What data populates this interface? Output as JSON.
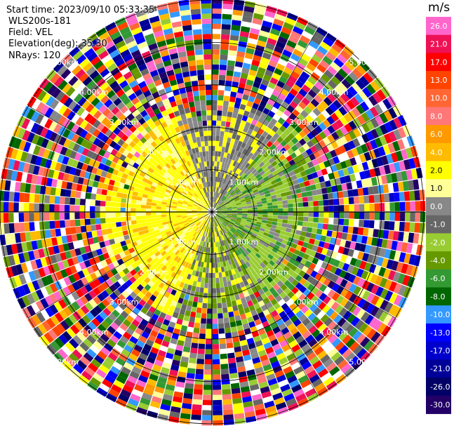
{
  "header": {
    "start_time": "Start time: 2023/09/10 05:33:35",
    "radar_name": "WLS200s-181",
    "field": "Field: VEL",
    "elevation": "Elevation(deg): 35.30",
    "nrays": "NRays: 120"
  },
  "colorbar": {
    "unit": "m/s",
    "ticks": [
      "26.0",
      "21.0",
      "17.0",
      "13.0",
      "10.0",
      "8.0",
      "6.0",
      "4.0",
      "2.0",
      "1.0",
      "0.0",
      "-1.0",
      "-2.0",
      "-4.0",
      "-6.0",
      "-8.0",
      "-10.0",
      "-13.0",
      "-17.0",
      "-21.0",
      "-26.0",
      "-30.0"
    ],
    "colors": [
      "#ff66cc",
      "#ee1155",
      "#ff0000",
      "#ff4400",
      "#ff6633",
      "#ff7777",
      "#ff9900",
      "#ffbb00",
      "#ffff00",
      "#ffff99",
      "#888888",
      "#666666",
      "#99cc33",
      "#669900",
      "#339933",
      "#006600",
      "#3399ff",
      "#0000ff",
      "#0000cc",
      "#000099",
      "#000066",
      "#220066"
    ]
  },
  "chart_data": {
    "type": "ppi-velocity",
    "field": "VEL",
    "units": "m/s",
    "nrays": 120,
    "elevation_deg": 35.3,
    "range_ring_labels": [
      "1.00km",
      "2.00km",
      "3.00km",
      "4.00km",
      "5.00km"
    ],
    "rings_km": [
      1,
      2,
      3,
      4,
      5
    ],
    "max_range_km": 5.0,
    "colorbar_range": [
      -30.0,
      26.0
    ]
  }
}
